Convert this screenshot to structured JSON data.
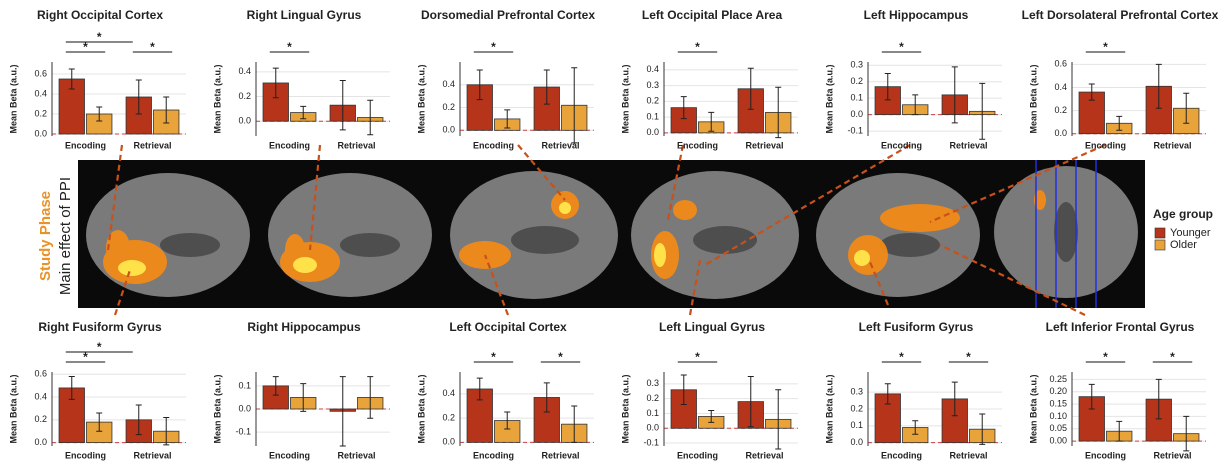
{
  "side_title": "Study Phase",
  "side_subtitle": "Main effect of PPI",
  "legend_title": "Age group",
  "chart_data": [
    {
      "type": "bar",
      "title": "Right Occipital Cortex",
      "y_label": "Mean Beta (a.u.)",
      "categories": [
        "Encoding",
        "Retrieval"
      ],
      "series": [
        {
          "name": "Younger",
          "color": "#b5341a",
          "values": [
            0.55,
            0.37
          ],
          "errors": [
            0.1,
            0.17
          ]
        },
        {
          "name": "Older",
          "color": "#e8a33a",
          "values": [
            0.2,
            0.24
          ],
          "errors": [
            0.07,
            0.13
          ]
        }
      ],
      "ylim": [
        -0.02,
        0.72
      ],
      "yticks": [
        {
          "value": 0,
          "label": "0.0"
        },
        0.2,
        0.4,
        0.6
      ],
      "grid": true,
      "annotations": [
        {
          "text": "*",
          "compare": "Encoding"
        },
        {
          "text": "*",
          "compare": "Younger"
        },
        {
          "text": "*",
          "compare": "Retrieval"
        }
      ]
    },
    {
      "type": "bar",
      "title": "Right Lingual Gyrus",
      "y_label": "Mean Beta (a.u.)",
      "categories": [
        "Encoding",
        "Retrieval"
      ],
      "series": [
        {
          "name": "Younger",
          "color": "#b5341a",
          "values": [
            0.31,
            0.13
          ],
          "errors": [
            0.12,
            0.2
          ]
        },
        {
          "name": "Older",
          "color": "#e8a33a",
          "values": [
            0.07,
            0.03
          ],
          "errors": [
            0.05,
            0.14
          ]
        }
      ],
      "ylim": [
        -0.12,
        0.48
      ],
      "yticks": [
        {
          "value": 0,
          "label": "0.0"
        },
        0.2,
        0.4
      ],
      "grid": true,
      "annotations": [
        {
          "text": "*",
          "compare": "Encoding"
        }
      ]
    },
    {
      "type": "bar",
      "title": "Dorsomedial Prefrontal Cortex",
      "y_label": "Mean Beta (a.u.)",
      "categories": [
        "Encoding",
        "Retrieval"
      ],
      "series": [
        {
          "name": "Younger",
          "color": "#b5341a",
          "values": [
            0.4,
            0.38
          ],
          "errors": [
            0.13,
            0.15
          ]
        },
        {
          "name": "Older",
          "color": "#e8a33a",
          "values": [
            0.1,
            0.22
          ],
          "errors": [
            0.08,
            0.33
          ]
        }
      ],
      "ylim": [
        -0.05,
        0.6
      ],
      "yticks": [
        {
          "value": 0,
          "label": "0.0"
        },
        0.2,
        0.4
      ],
      "grid": true,
      "annotations": [
        {
          "text": "*",
          "compare": "Encoding"
        }
      ]
    },
    {
      "type": "bar",
      "title": "Left Occipital Place Area",
      "y_label": "Mean Beta (a.u.)",
      "categories": [
        "Encoding",
        "Retrieval"
      ],
      "series": [
        {
          "name": "Younger",
          "color": "#b5341a",
          "values": [
            0.16,
            0.28
          ],
          "errors": [
            0.07,
            0.13
          ]
        },
        {
          "name": "Older",
          "color": "#e8a33a",
          "values": [
            0.07,
            0.13
          ],
          "errors": [
            0.06,
            0.16
          ]
        }
      ],
      "ylim": [
        -0.02,
        0.45
      ],
      "yticks": [
        {
          "value": 0,
          "label": "0.0"
        },
        0.1,
        0.2,
        0.3,
        0.4
      ],
      "grid": true,
      "annotations": [
        {
          "text": "*",
          "compare": "Encoding"
        }
      ]
    },
    {
      "type": "bar",
      "title": "Left Hippocampus",
      "y_label": "Mean Beta (a.u.)",
      "categories": [
        "Encoding",
        "Retrieval"
      ],
      "series": [
        {
          "name": "Younger",
          "color": "#b5341a",
          "values": [
            0.17,
            0.12
          ],
          "errors": [
            0.08,
            0.17
          ]
        },
        {
          "name": "Older",
          "color": "#e8a33a",
          "values": [
            0.06,
            0.02
          ],
          "errors": [
            0.06,
            0.17
          ]
        }
      ],
      "ylim": [
        -0.13,
        0.32
      ],
      "yticks": [
        -0.1,
        {
          "value": 0,
          "label": "0.0"
        },
        0.1,
        0.2,
        0.3
      ],
      "grid": true,
      "annotations": [
        {
          "text": "*",
          "compare": "Encoding"
        }
      ]
    },
    {
      "type": "bar",
      "title": "Left Dorsolateral Prefrontal Cortex",
      "y_label": "Mean Beta (a.u.)",
      "categories": [
        "Encoding",
        "Retrieval"
      ],
      "series": [
        {
          "name": "Younger",
          "color": "#b5341a",
          "values": [
            0.36,
            0.41
          ],
          "errors": [
            0.07,
            0.19
          ]
        },
        {
          "name": "Older",
          "color": "#e8a33a",
          "values": [
            0.09,
            0.22
          ],
          "errors": [
            0.06,
            0.13
          ]
        }
      ],
      "ylim": [
        -0.02,
        0.62
      ],
      "yticks": [
        {
          "value": 0,
          "label": "0.0"
        },
        0.2,
        0.4,
        0.6
      ],
      "grid": true,
      "annotations": [
        {
          "text": "*",
          "compare": "Encoding"
        }
      ]
    },
    {
      "type": "bar",
      "title": "Right Fusiform Gyrus",
      "y_label": "Mean Beta (a.u.)",
      "categories": [
        "Encoding",
        "Retrieval"
      ],
      "series": [
        {
          "name": "Younger",
          "color": "#b5341a",
          "values": [
            0.48,
            0.2
          ],
          "errors": [
            0.1,
            0.13
          ]
        },
        {
          "name": "Older",
          "color": "#e8a33a",
          "values": [
            0.18,
            0.1
          ],
          "errors": [
            0.08,
            0.12
          ]
        }
      ],
      "ylim": [
        -0.03,
        0.62
      ],
      "yticks": [
        {
          "value": 0,
          "label": "0.0"
        },
        0.2,
        0.4,
        0.6
      ],
      "grid": true,
      "annotations": [
        {
          "text": "*",
          "compare": "Encoding"
        },
        {
          "text": "*",
          "compare": "Younger"
        }
      ]
    },
    {
      "type": "bar",
      "title": "Right Hippocampus",
      "y_label": "Mean Beta (a.u.)",
      "categories": [
        "Encoding",
        "Retrieval"
      ],
      "series": [
        {
          "name": "Younger",
          "color": "#b5341a",
          "values": [
            0.1,
            -0.01
          ],
          "errors": [
            0.04,
            0.15
          ]
        },
        {
          "name": "Older",
          "color": "#e8a33a",
          "values": [
            0.05,
            0.05
          ],
          "errors": [
            0.06,
            0.09
          ]
        }
      ],
      "ylim": [
        -0.16,
        0.16
      ],
      "yticks": [
        -0.1,
        {
          "value": 0,
          "label": "0.0"
        },
        0.1
      ],
      "grid": true,
      "annotations": []
    },
    {
      "type": "bar",
      "title": "Left Occipital Cortex",
      "y_label": "Mean Beta (a.u.)",
      "categories": [
        "Encoding",
        "Retrieval"
      ],
      "series": [
        {
          "name": "Younger",
          "color": "#b5341a",
          "values": [
            0.44,
            0.37
          ],
          "errors": [
            0.09,
            0.12
          ]
        },
        {
          "name": "Older",
          "color": "#e8a33a",
          "values": [
            0.18,
            0.15
          ],
          "errors": [
            0.07,
            0.15
          ]
        }
      ],
      "ylim": [
        -0.03,
        0.58
      ],
      "yticks": [
        {
          "value": 0,
          "label": "0.0"
        },
        0.2,
        0.4
      ],
      "grid": true,
      "annotations": [
        {
          "text": "*",
          "compare": "Encoding"
        },
        {
          "text": "*",
          "compare": "Retrieval"
        }
      ]
    },
    {
      "type": "bar",
      "title": "Left Lingual Gyrus",
      "y_label": "Mean Beta (a.u.)",
      "categories": [
        "Encoding",
        "Retrieval"
      ],
      "series": [
        {
          "name": "Younger",
          "color": "#b5341a",
          "values": [
            0.26,
            0.18
          ],
          "errors": [
            0.1,
            0.17
          ]
        },
        {
          "name": "Older",
          "color": "#e8a33a",
          "values": [
            0.08,
            0.06
          ],
          "errors": [
            0.04,
            0.2
          ]
        }
      ],
      "ylim": [
        -0.12,
        0.38
      ],
      "yticks": [
        -0.1,
        {
          "value": 0,
          "label": "0.0"
        },
        0.1,
        0.2,
        0.3
      ],
      "grid": true,
      "annotations": [
        {
          "text": "*",
          "compare": "Encoding"
        }
      ]
    },
    {
      "type": "bar",
      "title": "Left Fusiform Gyrus",
      "y_label": "Mean Beta (a.u.)",
      "categories": [
        "Encoding",
        "Retrieval"
      ],
      "series": [
        {
          "name": "Younger",
          "color": "#b5341a",
          "values": [
            0.29,
            0.26
          ],
          "errors": [
            0.06,
            0.1
          ]
        },
        {
          "name": "Older",
          "color": "#e8a33a",
          "values": [
            0.09,
            0.08
          ],
          "errors": [
            0.04,
            0.09
          ]
        }
      ],
      "ylim": [
        -0.02,
        0.42
      ],
      "yticks": [
        {
          "value": 0,
          "label": "0.0"
        },
        0.1,
        0.2,
        0.3
      ],
      "grid": true,
      "annotations": [
        {
          "text": "*",
          "compare": "Encoding"
        },
        {
          "text": "*",
          "compare": "Retrieval"
        }
      ]
    },
    {
      "type": "bar",
      "title": "Left Inferior Frontal Gyrus",
      "y_label": "Mean Beta (a.u.)",
      "categories": [
        "Encoding",
        "Retrieval"
      ],
      "series": [
        {
          "name": "Younger",
          "color": "#b5341a",
          "values": [
            0.18,
            0.17
          ],
          "errors": [
            0.05,
            0.08
          ]
        },
        {
          "name": "Older",
          "color": "#e8a33a",
          "values": [
            0.04,
            0.03
          ],
          "errors": [
            0.04,
            0.07
          ]
        }
      ],
      "ylim": [
        -0.02,
        0.28
      ],
      "yticks": [
        {
          "value": 0,
          "label": "0.00"
        },
        0.05,
        {
          "value": 0.1,
          "label": "0.10"
        },
        0.15,
        {
          "value": 0.2,
          "label": "0.20"
        },
        0.25
      ],
      "grid": true,
      "annotations": [
        {
          "text": "*",
          "compare": "Encoding"
        },
        {
          "text": "*",
          "compare": "Retrieval"
        }
      ]
    }
  ]
}
